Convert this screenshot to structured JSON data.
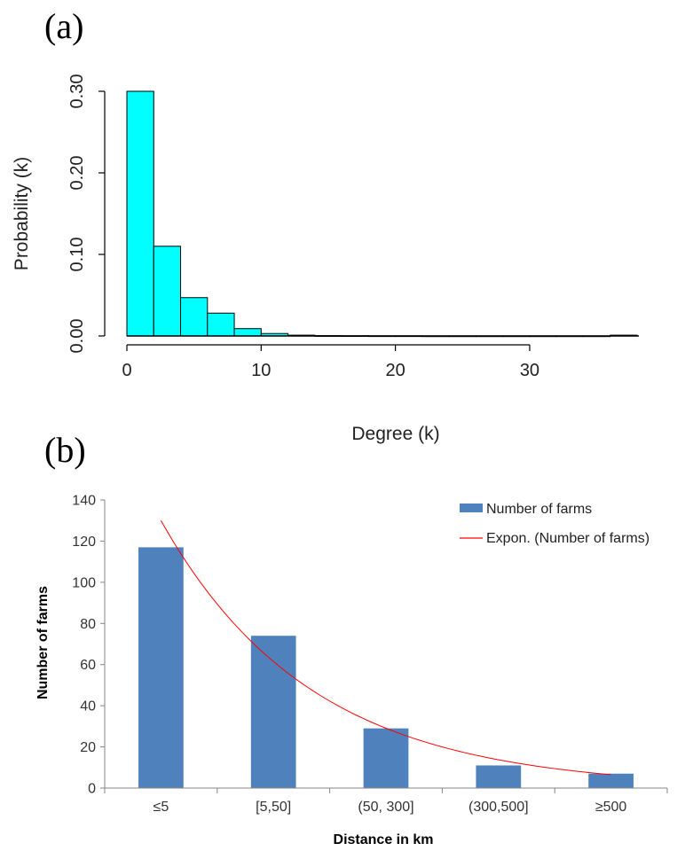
{
  "panel_labels": [
    "(a)",
    "(b)"
  ],
  "chart_data": [
    {
      "type": "bar",
      "panel": "(a)",
      "xlabel": "Degree (k)",
      "ylabel": "Probability (k)",
      "bins": [
        {
          "x0": 0,
          "x1": 2,
          "value": 0.3
        },
        {
          "x0": 2,
          "x1": 4,
          "value": 0.11
        },
        {
          "x0": 4,
          "x1": 6,
          "value": 0.047
        },
        {
          "x0": 6,
          "x1": 8,
          "value": 0.028
        },
        {
          "x0": 8,
          "x1": 10,
          "value": 0.009
        },
        {
          "x0": 10,
          "x1": 12,
          "value": 0.003
        },
        {
          "x0": 12,
          "x1": 14,
          "value": 0.001
        },
        {
          "x0": 14,
          "x1": 16,
          "value": 0.0004
        },
        {
          "x0": 16,
          "x1": 18,
          "value": 0.0003
        },
        {
          "x0": 18,
          "x1": 20,
          "value": 0.0002
        },
        {
          "x0": 20,
          "x1": 22,
          "value": 0.0002
        },
        {
          "x0": 22,
          "x1": 24,
          "value": 0.0001
        },
        {
          "x0": 24,
          "x1": 26,
          "value": 0.0001
        },
        {
          "x0": 26,
          "x1": 28,
          "value": 0.0001
        },
        {
          "x0": 28,
          "x1": 30,
          "value": 0.0001
        },
        {
          "x0": 30,
          "x1": 32,
          "value": 0.0001
        },
        {
          "x0": 32,
          "x1": 34,
          "value": 0.0001
        },
        {
          "x0": 34,
          "x1": 36,
          "value": 0.0001
        },
        {
          "x0": 36,
          "x1": 38,
          "value": 0.001
        }
      ],
      "xticks": [
        0,
        10,
        20,
        30
      ],
      "yticks": [
        "0.00",
        "0.10",
        "0.20",
        "0.30"
      ],
      "xlim": [
        0,
        38
      ],
      "ylim": [
        0,
        0.3
      ],
      "bar_color": "#00FFFF",
      "grid": false
    },
    {
      "type": "bar",
      "panel": "(b)",
      "xlabel": "Distance  in km",
      "ylabel": "Number of farms",
      "categories": [
        "≤5",
        "[5,50]",
        "(50, 300]",
        "(300,500]",
        "≥500"
      ],
      "series": [
        {
          "name": "Number of farms",
          "values": [
            117,
            74,
            29,
            11,
            7
          ],
          "color": "#4F81BD"
        }
      ],
      "trendline": {
        "name": "Expon. (Number of farms)",
        "type": "exponential",
        "values": [
          130,
          55,
          29,
          14,
          6.5
        ],
        "color": "#FF0000"
      },
      "yticks": [
        0,
        20,
        40,
        60,
        80,
        100,
        120,
        140
      ],
      "ylim": [
        0,
        140
      ],
      "legend": "top-right",
      "grid": false
    }
  ]
}
